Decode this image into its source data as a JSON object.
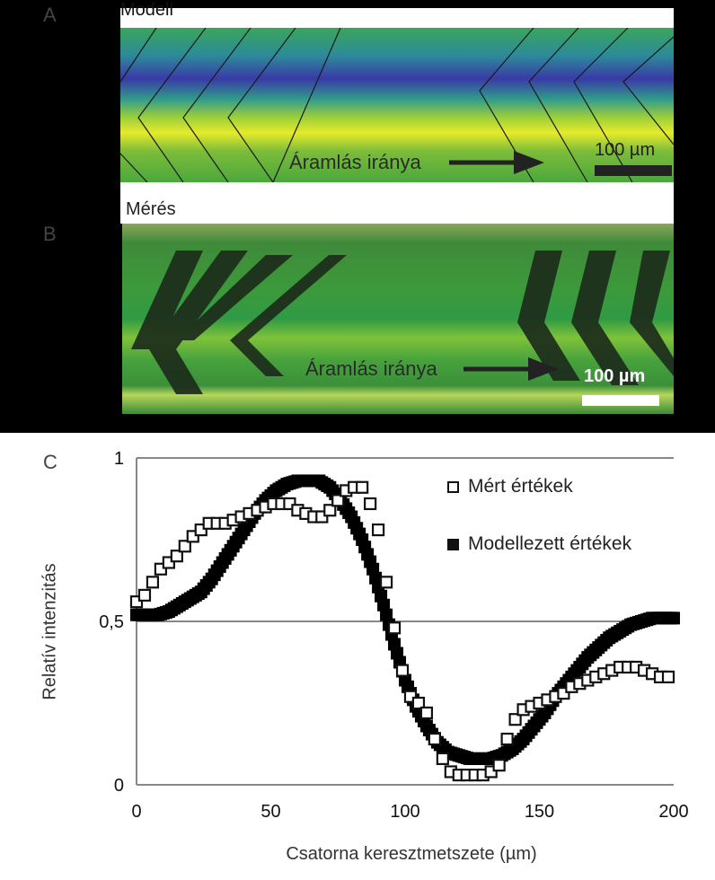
{
  "panel_a": {
    "letter": "A",
    "title": "Modell",
    "flow_label": "Áramlás iránya",
    "scale_label": "100 µm"
  },
  "panel_b": {
    "letter": "B",
    "title": "Mérés",
    "flow_label": "Áramlás iránya",
    "scale_label": "100 µm"
  },
  "panel_c": {
    "letter": "C"
  },
  "colors": {
    "measured": "#ffffff",
    "modeled": "#000000",
    "grid": "#888888",
    "model_green": "#6fb63a",
    "model_yellow": "#e6ea2a",
    "model_blue": "#3a3aa6",
    "measure_green": "#3c9a3a"
  },
  "chart_data": {
    "type": "scatter",
    "xlabel": "Csatorna keresztmetszete (µm)",
    "ylabel": "Relatív intenzitás",
    "xlim": [
      0,
      200
    ],
    "ylim": [
      0,
      1
    ],
    "xticks": [
      "0",
      "50",
      "100",
      "150",
      "200"
    ],
    "yticks": [
      "0",
      "0,5",
      "1"
    ],
    "grid": "horizontal",
    "legend_position": "top-right",
    "series": [
      {
        "name": "Mért értékek",
        "marker": "open-square",
        "x": [
          0,
          3,
          6,
          9,
          12,
          15,
          18,
          21,
          24,
          27,
          30,
          33,
          36,
          39,
          42,
          45,
          48,
          51,
          54,
          57,
          60,
          63,
          66,
          69,
          72,
          75,
          78,
          81,
          84,
          87,
          90,
          93,
          96,
          99,
          102,
          105,
          108,
          111,
          114,
          117,
          120,
          123,
          126,
          129,
          132,
          135,
          138,
          141,
          144,
          147,
          150,
          153,
          156,
          159,
          162,
          165,
          168,
          171,
          174,
          177,
          180,
          183,
          186,
          189,
          192,
          195,
          198
        ],
        "y": [
          0.56,
          0.58,
          0.62,
          0.66,
          0.68,
          0.7,
          0.73,
          0.76,
          0.78,
          0.8,
          0.8,
          0.8,
          0.81,
          0.82,
          0.83,
          0.84,
          0.85,
          0.86,
          0.86,
          0.86,
          0.84,
          0.83,
          0.82,
          0.82,
          0.84,
          0.87,
          0.9,
          0.91,
          0.91,
          0.86,
          0.78,
          0.62,
          0.48,
          0.35,
          0.27,
          0.25,
          0.22,
          0.14,
          0.08,
          0.04,
          0.03,
          0.03,
          0.03,
          0.03,
          0.04,
          0.06,
          0.14,
          0.2,
          0.23,
          0.24,
          0.25,
          0.26,
          0.27,
          0.28,
          0.3,
          0.31,
          0.32,
          0.33,
          0.34,
          0.35,
          0.36,
          0.36,
          0.36,
          0.35,
          0.34,
          0.33,
          0.33
        ]
      },
      {
        "name": "Modellezett értékek",
        "marker": "filled-square",
        "x": [
          0,
          4,
          8,
          12,
          16,
          20,
          24,
          28,
          32,
          36,
          40,
          44,
          48,
          52,
          56,
          60,
          64,
          68,
          72,
          76,
          80,
          84,
          88,
          92,
          96,
          100,
          104,
          108,
          112,
          116,
          120,
          124,
          128,
          132,
          136,
          140,
          144,
          148,
          152,
          156,
          160,
          164,
          168,
          172,
          176,
          180,
          184,
          188,
          192,
          196,
          200
        ],
        "y": [
          0.52,
          0.52,
          0.52,
          0.53,
          0.55,
          0.57,
          0.59,
          0.63,
          0.68,
          0.73,
          0.78,
          0.83,
          0.87,
          0.9,
          0.92,
          0.93,
          0.93,
          0.93,
          0.91,
          0.87,
          0.82,
          0.75,
          0.66,
          0.55,
          0.43,
          0.32,
          0.24,
          0.18,
          0.13,
          0.1,
          0.09,
          0.08,
          0.08,
          0.08,
          0.09,
          0.11,
          0.14,
          0.18,
          0.22,
          0.27,
          0.31,
          0.35,
          0.39,
          0.42,
          0.45,
          0.47,
          0.49,
          0.5,
          0.51,
          0.51,
          0.51
        ]
      }
    ]
  }
}
